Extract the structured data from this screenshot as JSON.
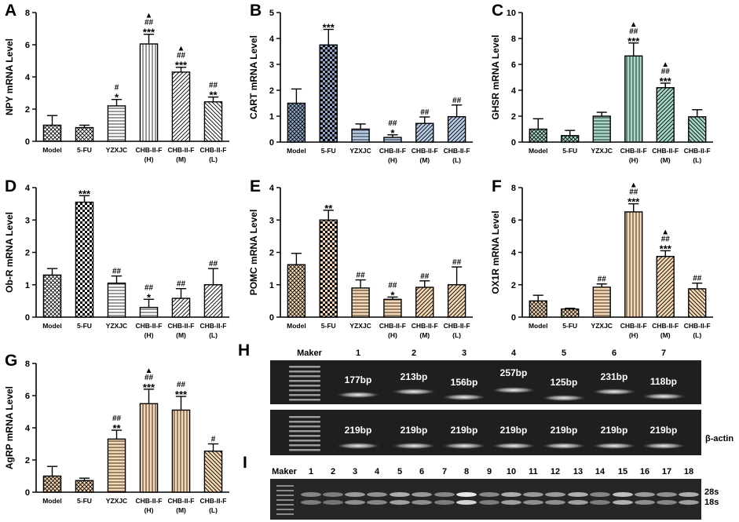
{
  "panels": [
    {
      "letter": "A",
      "ylabel": "NPY mRNA Level",
      "ymax": 8,
      "ticks": [
        0,
        2,
        4,
        6,
        8
      ],
      "categories": [
        "Model",
        "5-FU",
        "YZXJC",
        "CHB-II-F\n(H)",
        "CHB-II-F\n(M)",
        "CHB-II-F\n(L)"
      ],
      "values": [
        1.0,
        0.85,
        2.2,
        6.05,
        4.3,
        2.45
      ],
      "errors": [
        0.6,
        0.15,
        0.4,
        0.6,
        0.3,
        0.3
      ],
      "annotations": [
        "",
        "",
        "#\n*",
        "▲\n##\n***",
        "▲\n##\n***",
        "##\n**"
      ],
      "fills": [
        "cross",
        "cross",
        "hstripe",
        "vstripe",
        "diag",
        "diagb"
      ],
      "colors": [
        "#ffffff",
        "#ffffff",
        "#ffffff",
        "#ffffff",
        "#ffffff",
        "#ffffff"
      ]
    },
    {
      "letter": "B",
      "ylabel": "CART mRNA Level",
      "ymax": 5,
      "ticks": [
        0,
        1,
        2,
        3,
        4,
        5
      ],
      "categories": [
        "Model",
        "5-FU",
        "YZXJC",
        "CHB-II-F\n(H)",
        "CHB-II-F\n(M)",
        "CHB-II-F\n(L)"
      ],
      "values": [
        1.5,
        3.75,
        0.5,
        0.18,
        0.72,
        0.98
      ],
      "errors": [
        0.55,
        0.6,
        0.2,
        0.1,
        0.25,
        0.45
      ],
      "annotations": [
        "",
        "***",
        "",
        "##\n*",
        "##",
        "##"
      ],
      "fills": [
        "cross",
        "check",
        "hstripe",
        "hstripe",
        "diag",
        "diag"
      ],
      "colors": [
        "#8fa8c8",
        "#8fa8c8",
        "#b9cde6",
        "#b9cde6",
        "#b9cde6",
        "#b9cde6"
      ]
    },
    {
      "letter": "C",
      "ylabel": "GHSR mRNA Level",
      "ymax": 10,
      "ticks": [
        0,
        2,
        4,
        6,
        8,
        10
      ],
      "categories": [
        "Model",
        "5-FU",
        "YZXJC",
        "CHB-II-F\n(H)",
        "CHB-II-F\n(M)",
        "CHB-II-F\n(L)"
      ],
      "values": [
        1.0,
        0.5,
        2.0,
        6.65,
        4.2,
        1.95
      ],
      "errors": [
        0.8,
        0.4,
        0.3,
        1.0,
        0.35,
        0.55
      ],
      "annotations": [
        "",
        "",
        "",
        "▲\n##\n***",
        "▲\n##\n***",
        ""
      ],
      "fills": [
        "cross",
        "cross",
        "hstripe",
        "vstripe",
        "diag",
        "diagb"
      ],
      "colors": [
        "#a6d8c8",
        "#a6d8c8",
        "#a6d8c8",
        "#a6d8c8",
        "#a6d8c8",
        "#a6d8c8"
      ]
    },
    {
      "letter": "D",
      "ylabel": "Ob-R mRNA Level",
      "ymax": 4,
      "ticks": [
        0,
        1,
        2,
        3,
        4
      ],
      "categories": [
        "Model",
        "5-FU",
        "YZXJC",
        "CHB-II-F\n(H)",
        "CHB-II-F\n(M)",
        "CHB-II-F\n(L)"
      ],
      "values": [
        1.3,
        3.55,
        1.05,
        0.3,
        0.58,
        1.0
      ],
      "errors": [
        0.2,
        0.2,
        0.22,
        0.25,
        0.3,
        0.5
      ],
      "annotations": [
        "",
        "***",
        "##",
        "##\n*",
        "##",
        "##"
      ],
      "fills": [
        "cross",
        "check",
        "hstripe",
        "hstripe",
        "diag",
        "diag"
      ],
      "colors": [
        "#ffffff",
        "#ffffff",
        "#ffffff",
        "#ffffff",
        "#ffffff",
        "#ffffff"
      ]
    },
    {
      "letter": "E",
      "ylabel": "POMC mRNA Level",
      "ymax": 4,
      "ticks": [
        0,
        1,
        2,
        3,
        4
      ],
      "categories": [
        "Model",
        "5-FU",
        "YZXJC",
        "CHB-II-F\n(H)",
        "CHB-II-F\n(M)",
        "CHB-II-F\n(L)"
      ],
      "values": [
        1.62,
        3.0,
        0.9,
        0.55,
        0.92,
        1.0
      ],
      "errors": [
        0.35,
        0.3,
        0.25,
        0.07,
        0.2,
        0.55
      ],
      "annotations": [
        "",
        "**",
        "##",
        "##\n*",
        "##",
        "##"
      ],
      "fills": [
        "cross",
        "check",
        "hstripe",
        "hstripe",
        "diag",
        "diag"
      ],
      "colors": [
        "#f6d9b3",
        "#f6d9b3",
        "#f6d9b3",
        "#f6d9b3",
        "#f6d9b3",
        "#f6d9b3"
      ]
    },
    {
      "letter": "F",
      "ylabel": "OX1R mRNA Level",
      "ymax": 8,
      "ticks": [
        0,
        2,
        4,
        6,
        8
      ],
      "categories": [
        "Model",
        "5-FU",
        "YZXJC",
        "CHB-II-F\n(H)",
        "CHB-II-F\n(M)",
        "CHB-II-F\n(L)"
      ],
      "values": [
        1.0,
        0.5,
        1.85,
        6.5,
        3.75,
        1.75
      ],
      "errors": [
        0.35,
        0.05,
        0.2,
        0.5,
        0.35,
        0.35
      ],
      "annotations": [
        "",
        "",
        "##",
        "▲\n##\n***",
        "▲\n##\n***",
        "##"
      ],
      "fills": [
        "cross",
        "cross",
        "hstripe",
        "vstripe",
        "diag",
        "diagb"
      ],
      "colors": [
        "#f6d9b3",
        "#f6d9b3",
        "#f6d9b3",
        "#f6d9b3",
        "#f6d9b3",
        "#f6d9b3"
      ]
    },
    {
      "letter": "G",
      "ylabel": "AgRP mRNA Level",
      "ymax": 8,
      "ticks": [
        0,
        2,
        4,
        6,
        8
      ],
      "categories": [
        "Model",
        "5-FU",
        "YZXJC",
        "CHB-II-F\n(H)",
        "CHB-II-F\n(M)",
        "CHB-II-F\n(L)"
      ],
      "values": [
        1.0,
        0.72,
        3.3,
        5.5,
        5.1,
        2.55
      ],
      "errors": [
        0.6,
        0.15,
        0.55,
        0.9,
        0.85,
        0.45
      ],
      "annotations": [
        "",
        "",
        "##\n**",
        "▲\n##\n***",
        "##\n***",
        "#"
      ],
      "fills": [
        "cross",
        "cross",
        "hstripe",
        "vstripe",
        "vstripe",
        "diagb"
      ],
      "colors": [
        "#f6d9b3",
        "#f6d9b3",
        "#f6d9b3",
        "#f6d9b3",
        "#f6d9b3",
        "#f6d9b3"
      ]
    }
  ],
  "gel_h": {
    "letter": "H",
    "lane_headers": [
      "Maker",
      "1",
      "2",
      "3",
      "4",
      "5",
      "6",
      "7"
    ],
    "top_sizes": [
      "177bp",
      "213bp",
      "156bp",
      "257bp",
      "125bp",
      "231bp",
      "118bp"
    ],
    "bottom_sizes": [
      "219bp",
      "219bp",
      "219bp",
      "219bp",
      "219bp",
      "219bp",
      "219bp"
    ],
    "bottom_label": "β-actin"
  },
  "gel_i": {
    "letter": "I",
    "lane_headers": [
      "Maker",
      "1",
      "2",
      "3",
      "4",
      "5",
      "6",
      "7",
      "8",
      "9",
      "10",
      "11",
      "12",
      "13",
      "14",
      "15",
      "16",
      "17",
      "18"
    ],
    "band_labels": [
      "28s",
      "18s"
    ]
  },
  "chart_data": [
    {
      "type": "bar",
      "title": "A",
      "ylabel": "NPY mRNA Level",
      "ylim": [
        0,
        8
      ],
      "categories": [
        "Model",
        "5-FU",
        "YZXJC",
        "CHB-II-F (H)",
        "CHB-II-F (M)",
        "CHB-II-F (L)"
      ],
      "values": [
        1.0,
        0.85,
        2.2,
        6.05,
        4.3,
        2.45
      ]
    },
    {
      "type": "bar",
      "title": "B",
      "ylabel": "CART mRNA Level",
      "ylim": [
        0,
        5
      ],
      "categories": [
        "Model",
        "5-FU",
        "YZXJC",
        "CHB-II-F (H)",
        "CHB-II-F (M)",
        "CHB-II-F (L)"
      ],
      "values": [
        1.5,
        3.75,
        0.5,
        0.18,
        0.72,
        0.98
      ]
    },
    {
      "type": "bar",
      "title": "C",
      "ylabel": "GHSR mRNA Level",
      "ylim": [
        0,
        10
      ],
      "categories": [
        "Model",
        "5-FU",
        "YZXJC",
        "CHB-II-F (H)",
        "CHB-II-F (M)",
        "CHB-II-F (L)"
      ],
      "values": [
        1.0,
        0.5,
        2.0,
        6.65,
        4.2,
        1.95
      ]
    },
    {
      "type": "bar",
      "title": "D",
      "ylabel": "Ob-R mRNA Level",
      "ylim": [
        0,
        4
      ],
      "categories": [
        "Model",
        "5-FU",
        "YZXJC",
        "CHB-II-F (H)",
        "CHB-II-F (M)",
        "CHB-II-F (L)"
      ],
      "values": [
        1.3,
        3.55,
        1.05,
        0.3,
        0.58,
        1.0
      ]
    },
    {
      "type": "bar",
      "title": "E",
      "ylabel": "POMC mRNA Level",
      "ylim": [
        0,
        4
      ],
      "categories": [
        "Model",
        "5-FU",
        "YZXJC",
        "CHB-II-F (H)",
        "CHB-II-F (M)",
        "CHB-II-F (L)"
      ],
      "values": [
        1.62,
        3.0,
        0.9,
        0.55,
        0.92,
        1.0
      ]
    },
    {
      "type": "bar",
      "title": "F",
      "ylabel": "OX1R mRNA Level",
      "ylim": [
        0,
        8
      ],
      "categories": [
        "Model",
        "5-FU",
        "YZXJC",
        "CHB-II-F (H)",
        "CHB-II-F (M)",
        "CHB-II-F (L)"
      ],
      "values": [
        1.0,
        0.5,
        1.85,
        6.5,
        3.75,
        1.75
      ]
    },
    {
      "type": "bar",
      "title": "G",
      "ylabel": "AgRP mRNA Level",
      "ylim": [
        0,
        8
      ],
      "categories": [
        "Model",
        "5-FU",
        "YZXJC",
        "CHB-II-F (H)",
        "CHB-II-F (M)",
        "CHB-II-F (L)"
      ],
      "values": [
        1.0,
        0.72,
        3.3,
        5.5,
        5.1,
        2.55
      ]
    }
  ]
}
